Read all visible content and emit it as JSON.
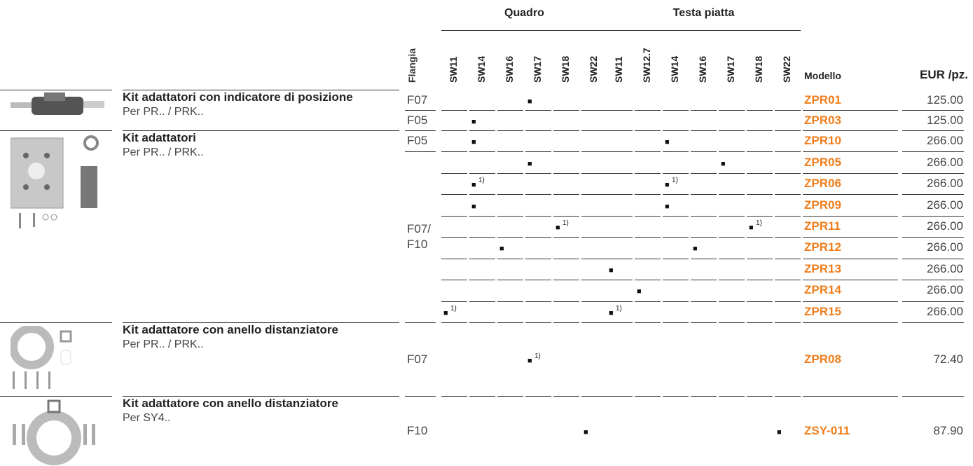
{
  "header": {
    "flange": "Flangia",
    "groups": [
      {
        "label": "Quadro",
        "columns": [
          "SW11",
          "SW14",
          "SW16",
          "SW17",
          "SW18",
          "SW22"
        ]
      },
      {
        "label": "Testa piatta",
        "columns": [
          "SW11",
          "SW12.7",
          "SW14",
          "SW16",
          "SW17",
          "SW18",
          "SW22"
        ]
      }
    ],
    "model": "Modello",
    "price": "EUR /pz."
  },
  "products": [
    {
      "title": "Kit adattatori con indicatore di posizione",
      "subtitle": "Per PR.. / PRK..",
      "rows": [
        {
          "flange": "F07",
          "cells": [
            null,
            null,
            null,
            "■",
            null,
            null,
            null,
            null,
            null,
            null,
            null,
            null,
            null
          ],
          "model": "ZPR01",
          "price": "125.00"
        },
        {
          "flange": "F05",
          "cells": [
            null,
            "■",
            null,
            null,
            null,
            null,
            null,
            null,
            null,
            null,
            null,
            null,
            null
          ],
          "model": "ZPR03",
          "price": "125.00"
        }
      ]
    },
    {
      "title": "Kit adattatori",
      "subtitle": "Per PR.. / PRK..",
      "rows": [
        {
          "flange": "F05",
          "cells": [
            null,
            "■",
            null,
            null,
            null,
            null,
            null,
            null,
            "■",
            null,
            null,
            null,
            null
          ],
          "model": "ZPR10",
          "price": "266.00"
        },
        {
          "flange": "F07/\nF10",
          "cells": [
            null,
            null,
            null,
            "■",
            null,
            null,
            null,
            null,
            null,
            null,
            "■",
            null,
            null
          ],
          "model": "ZPR05",
          "price": "266.00"
        },
        {
          "flange": null,
          "cells": [
            null,
            {
              "mark": "■",
              "note": "1)"
            },
            null,
            null,
            null,
            null,
            null,
            null,
            {
              "mark": "■",
              "note": "1)"
            },
            null,
            null,
            null,
            null
          ],
          "model": "ZPR06",
          "price": "266.00"
        },
        {
          "flange": null,
          "cells": [
            null,
            "■",
            null,
            null,
            null,
            null,
            null,
            null,
            "■",
            null,
            null,
            null,
            null
          ],
          "model": "ZPR09",
          "price": "266.00"
        },
        {
          "flange": null,
          "cells": [
            null,
            null,
            null,
            null,
            {
              "mark": "■",
              "note": "1)"
            },
            null,
            null,
            null,
            null,
            null,
            null,
            {
              "mark": "■",
              "note": "1)"
            },
            null
          ],
          "model": "ZPR11",
          "price": "266.00"
        },
        {
          "flange": null,
          "cells": [
            null,
            null,
            "■",
            null,
            null,
            null,
            null,
            null,
            null,
            "■",
            null,
            null,
            null
          ],
          "model": "ZPR12",
          "price": "266.00"
        },
        {
          "flange": null,
          "cells": [
            null,
            null,
            null,
            null,
            null,
            null,
            "■",
            null,
            null,
            null,
            null,
            null,
            null
          ],
          "model": "ZPR13",
          "price": "266.00"
        },
        {
          "flange": null,
          "cells": [
            null,
            null,
            null,
            null,
            null,
            null,
            null,
            "■",
            null,
            null,
            null,
            null,
            null
          ],
          "model": "ZPR14",
          "price": "266.00"
        },
        {
          "flange": null,
          "cells": [
            {
              "mark": "■",
              "note": "1)"
            },
            null,
            null,
            null,
            null,
            null,
            {
              "mark": "■",
              "note": "1)"
            },
            null,
            null,
            null,
            null,
            null,
            null
          ],
          "model": "ZPR15",
          "price": "266.00"
        }
      ]
    },
    {
      "title": "Kit adattatore con anello distanziatore",
      "subtitle": "Per PR.. / PRK..",
      "rows": [
        {
          "flange": "F07",
          "cells": [
            null,
            null,
            null,
            {
              "mark": "■",
              "note": "1)"
            },
            null,
            null,
            null,
            null,
            null,
            null,
            null,
            null,
            null
          ],
          "model": "ZPR08",
          "price": "72.40"
        }
      ]
    },
    {
      "title": "Kit adattatore con anello distanziatore",
      "subtitle": "Per SY4..",
      "rows": [
        {
          "flange": "F10",
          "cells": [
            null,
            null,
            null,
            null,
            null,
            "■",
            null,
            null,
            null,
            null,
            null,
            null,
            "■"
          ],
          "model": "ZSY-011",
          "price": "87.90"
        }
      ]
    }
  ]
}
